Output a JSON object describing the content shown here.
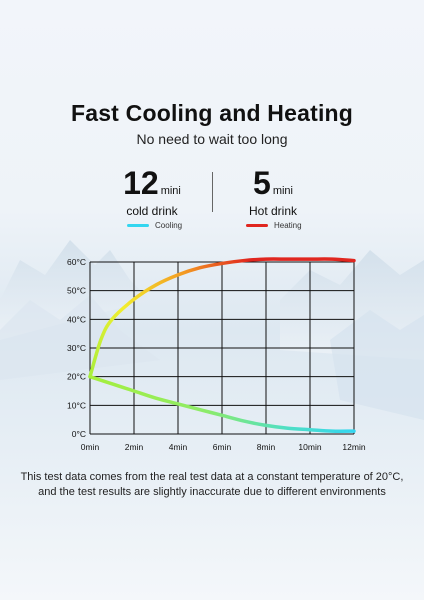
{
  "header": {
    "title": "Fast Cooling and Heating",
    "subtitle": "No need to wait too long"
  },
  "stats": {
    "cold": {
      "number": "12",
      "unit": "mini",
      "label": "cold drink"
    },
    "hot": {
      "number": "5",
      "unit": "mini",
      "label": "Hot drink"
    }
  },
  "colors": {
    "cooling": "#33d6f0",
    "heating": "#e0261f",
    "grid": "#111111"
  },
  "chart_data": {
    "type": "line",
    "title": "",
    "xlabel": "",
    "ylabel": "",
    "x_ticks": [
      "0min",
      "2min",
      "4min",
      "6min",
      "8min",
      "10min",
      "12min"
    ],
    "y_ticks": [
      "0°C",
      "10°C",
      "20°C",
      "30°C",
      "40°C",
      "50°C",
      "60°C"
    ],
    "xlim": [
      0,
      12
    ],
    "ylim": [
      0,
      60
    ],
    "grid": true,
    "legend_position": "top",
    "series": [
      {
        "name": "Cooling",
        "x": [
          0,
          1,
          2,
          3,
          4,
          5,
          6,
          7,
          8,
          9,
          10,
          11,
          12
        ],
        "y": [
          20,
          17.5,
          15,
          12.5,
          10.5,
          8.5,
          6.5,
          4.5,
          3,
          2,
          1.5,
          1,
          1
        ]
      },
      {
        "name": "Heating",
        "x": [
          0,
          0.5,
          1,
          2,
          3,
          4,
          5,
          6,
          7,
          8,
          9,
          10,
          11,
          12
        ],
        "y": [
          20,
          33,
          40,
          47,
          52,
          55.5,
          58,
          59.5,
          60.5,
          61,
          61,
          61,
          61,
          60.5
        ]
      }
    ]
  },
  "footnote": {
    "line1": "This test data comes from the real test data at a constant temperature of 20°C,",
    "line2": "and the test results are slightly inaccurate due to different environments"
  }
}
